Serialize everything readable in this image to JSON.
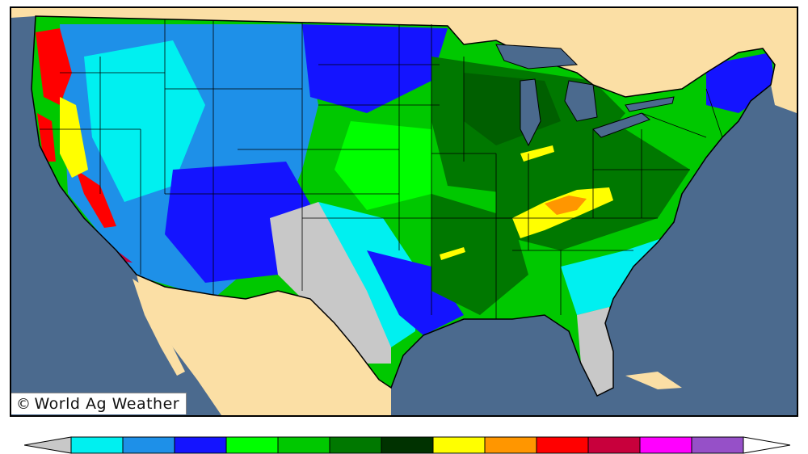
{
  "credit": {
    "symbol": "©",
    "text": "World Ag Weather"
  },
  "colors": {
    "ocean": "#4b6a8e",
    "land_outside": "#fbdfa5",
    "no_data": "#c8c8c8",
    "borders": "#000000"
  },
  "legend": {
    "colors": [
      "#c8c8c8",
      "#00f0f0",
      "#1e90e8",
      "#1414ff",
      "#00ff00",
      "#00c800",
      "#007800",
      "#003200",
      "#ffff00",
      "#ff9600",
      "#ff0000",
      "#c8003c",
      "#ff00ff",
      "#9650c8",
      "#ffffff"
    ]
  }
}
